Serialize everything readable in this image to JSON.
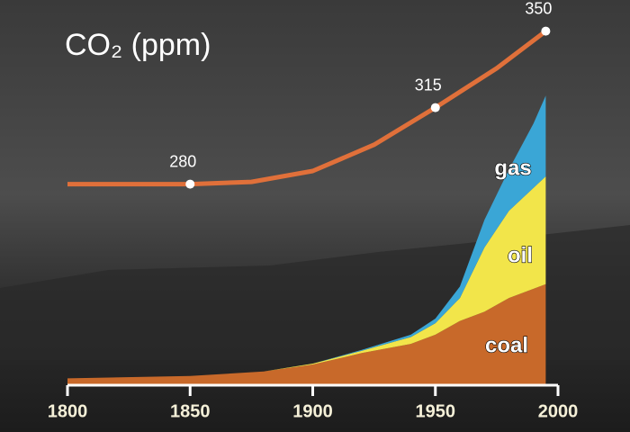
{
  "chart_data": [
    {
      "type": "line",
      "title": "CO₂ (ppm)",
      "x": [
        1800,
        1850,
        1875,
        1900,
        1925,
        1950,
        1975,
        1995
      ],
      "values": [
        280,
        280,
        281,
        286,
        298,
        315,
        333,
        350
      ],
      "value_labels": [
        null,
        "280",
        null,
        null,
        null,
        "315",
        null,
        "350"
      ],
      "color": "#e0703a",
      "xlim": [
        1800,
        2000
      ],
      "xticks": [
        1800,
        1850,
        1900,
        1950,
        2000
      ],
      "ylim": [
        188,
        356
      ]
    },
    {
      "type": "stacked-area",
      "x": [
        1800,
        1850,
        1880,
        1900,
        1920,
        1940,
        1950,
        1960,
        1970,
        1980,
        1990,
        1995
      ],
      "series": [
        {
          "name": "coal",
          "color": "#c8692a",
          "values": [
            0.15,
            0.2,
            0.3,
            0.45,
            0.7,
            0.9,
            1.1,
            1.4,
            1.6,
            1.9,
            2.1,
            2.2
          ]
        },
        {
          "name": "oil",
          "color": "#f2e54a",
          "values": [
            0,
            0,
            0,
            0.02,
            0.05,
            0.15,
            0.25,
            0.5,
            1.4,
            1.9,
            2.2,
            2.35
          ]
        },
        {
          "name": "gas",
          "color": "#3aa6d6",
          "values": [
            0,
            0,
            0,
            0,
            0.02,
            0.05,
            0.1,
            0.25,
            0.6,
            0.9,
            1.4,
            1.76
          ]
        }
      ],
      "xlim": [
        1800,
        2000
      ],
      "ylim": [
        0,
        8
      ]
    }
  ]
}
